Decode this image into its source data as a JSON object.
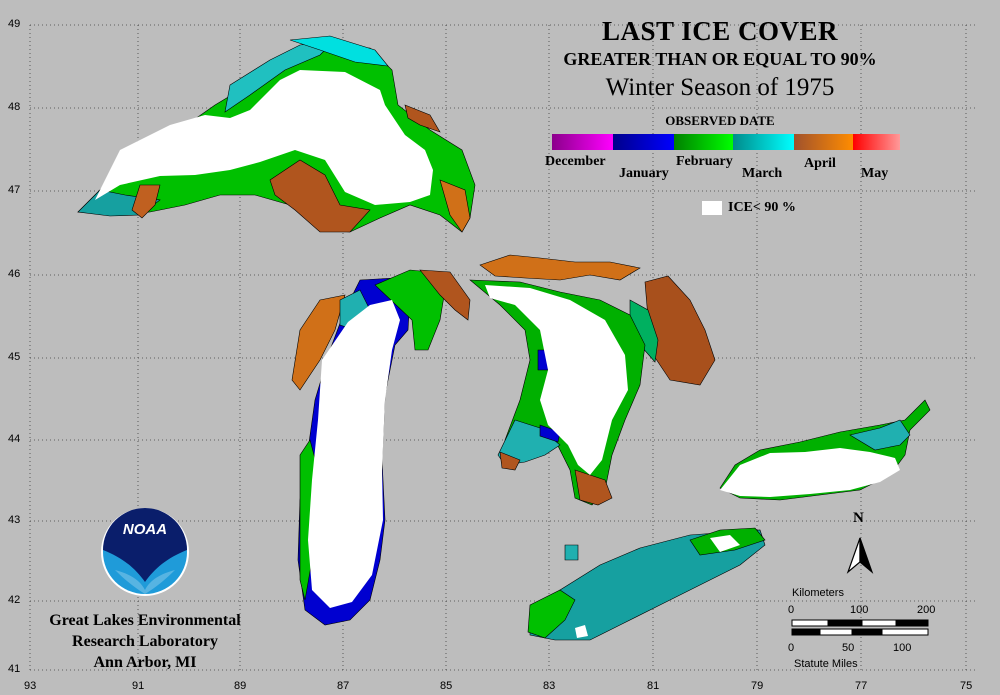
{
  "title": "LAST ICE COVER",
  "subtitle": "GREATER THAN OR EQUAL TO 90%",
  "season": "Winter Season of 1975",
  "legend": {
    "heading": "OBSERVED DATE",
    "months": [
      {
        "label": "December",
        "from": "#8b008b",
        "to": "#ff00ff"
      },
      {
        "label": "January",
        "from": "#00008b",
        "to": "#0000ff"
      },
      {
        "label": "February",
        "from": "#008000",
        "to": "#00ff00"
      },
      {
        "label": "March",
        "from": "#008b8b",
        "to": "#00ffff"
      },
      {
        "label": "April",
        "from": "#a0522d",
        "to": "#ff8c00"
      },
      {
        "label": "May",
        "from": "#ff0000",
        "to": "#ff9999"
      }
    ],
    "ice_label": "ICE< 90 %",
    "ice_color": "#ffffff"
  },
  "axes": {
    "latitude": [
      "49",
      "48",
      "47",
      "46",
      "45",
      "44",
      "43",
      "42",
      "41"
    ],
    "longitude": [
      "93",
      "91",
      "89",
      "87",
      "85",
      "83",
      "81",
      "79",
      "77",
      "75"
    ]
  },
  "north_arrow": "N",
  "scale": {
    "km_label": "Kilometers",
    "km_ticks": [
      "0",
      "100",
      "200"
    ],
    "mi_ticks": [
      "0",
      "50",
      "100"
    ],
    "mi_label": "Statute Miles"
  },
  "logo_text": "NOAA",
  "lab": {
    "line1": "Great Lakes Environmental",
    "line2": "Research Laboratory",
    "line3": "Ann Arbor, MI"
  },
  "colors": {
    "background": "#bdbdbd",
    "ice_lt_90": "#ffffff",
    "shoreline": "#000000"
  }
}
